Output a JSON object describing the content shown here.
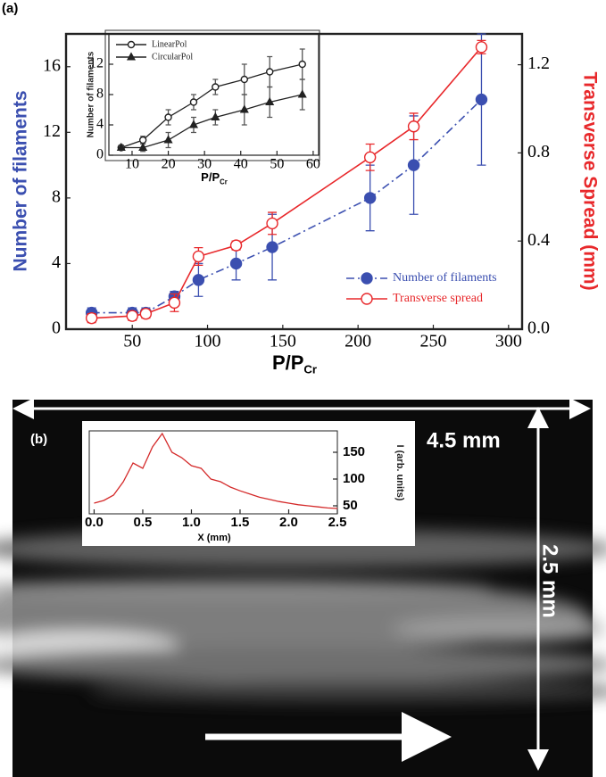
{
  "figure": {
    "panel_labels": [
      "(a)",
      "(b)"
    ],
    "scale_labels": [
      "4.5 mm",
      "2.5 mm"
    ]
  },
  "chart_data": [
    {
      "type": "line",
      "xlabel": "P/P",
      "xlabel_sub": "Cr",
      "ylabel": "Number of filaments",
      "y2label": "Transverse Spread (mm)",
      "x": [
        23,
        50,
        59,
        78,
        94,
        119,
        143,
        208,
        237,
        282
      ],
      "xlim": [
        6,
        309
      ],
      "xticks": [
        50,
        100,
        150,
        200,
        250,
        300
      ],
      "ylim": [
        0,
        18
      ],
      "yticks": [
        0,
        4,
        8,
        12,
        16
      ],
      "y2lim": [
        0,
        1.34
      ],
      "y2ticks": [
        {
          "value": 0,
          "label": "0.0"
        },
        0.4,
        0.8,
        1.2
      ],
      "legend": "lower right",
      "series": [
        {
          "name": "Number of filaments",
          "color": "#3b4fb0",
          "linestyle": "dashdot",
          "marker": "filled-circle",
          "values": [
            1,
            1,
            1,
            2,
            3,
            4,
            5,
            8,
            10,
            14
          ],
          "errors": [
            0.3,
            0.3,
            0.3,
            0.3,
            1,
            1,
            2,
            2,
            3,
            4
          ]
        },
        {
          "name": "Transverse spread",
          "color": "#e8282b",
          "linestyle": "solid",
          "marker": "open-circle",
          "axis": "y2",
          "values": [
            0.05,
            0.06,
            0.07,
            0.12,
            0.33,
            0.38,
            0.48,
            0.78,
            0.92,
            1.28
          ],
          "errors": [
            0.02,
            0.02,
            0.02,
            0.04,
            0.04,
            0.02,
            0.05,
            0.06,
            0.06,
            0.03
          ]
        }
      ]
    },
    {
      "type": "line",
      "xlabel": "P/P",
      "xlabel_sub": "Cr",
      "ylabel": "Number of filaments",
      "x": [
        7,
        13,
        20,
        27,
        33,
        41,
        48,
        57
      ],
      "xlim": [
        3.6,
        61.5
      ],
      "xticks": [
        10,
        20,
        30,
        40,
        50,
        60
      ],
      "ylim": [
        0,
        16
      ],
      "yticks": [
        0,
        4,
        8,
        12
      ],
      "legend": "upper left",
      "series": [
        {
          "name": "LinearPol",
          "color": "#222222",
          "linestyle": "solid",
          "marker": "open-circle",
          "values": [
            1,
            2,
            5,
            7,
            9,
            10,
            11,
            12
          ],
          "errors": [
            0.3,
            0.5,
            1,
            1,
            1,
            2,
            2,
            2
          ]
        },
        {
          "name": "CircularPol",
          "color": "#222222",
          "linestyle": "solid",
          "marker": "filled-triangle",
          "values": [
            1,
            1,
            2,
            4,
            5,
            6,
            7,
            8
          ],
          "errors": [
            0.3,
            0.5,
            1,
            1,
            1,
            2,
            2,
            2
          ]
        }
      ]
    },
    {
      "type": "line",
      "xlabel": "X (mm)",
      "ylabel": "I (arb. units)",
      "x": [
        0,
        0.1,
        0.2,
        0.3,
        0.4,
        0.5,
        0.6,
        0.7,
        0.8,
        0.9,
        1,
        1.1,
        1.2,
        1.3,
        1.4,
        1.5,
        1.6,
        1.7,
        1.8,
        1.9,
        2,
        2.1,
        2.2,
        2.3,
        2.4,
        2.5
      ],
      "xlim": [
        -0.05,
        2.5
      ],
      "xticks": [
        {
          "value": 0,
          "label": "0.0"
        },
        0.5,
        {
          "value": 1,
          "label": "1.0"
        },
        1.5,
        {
          "value": 2,
          "label": "2.0"
        },
        2.5
      ],
      "ylim": [
        35,
        190
      ],
      "yticks": [
        50,
        100,
        150
      ],
      "series": [
        {
          "color": "#d42a2a",
          "linestyle": "solid",
          "marker": "none",
          "values": [
            55,
            60,
            70,
            95,
            130,
            120,
            160,
            185,
            150,
            140,
            125,
            120,
            100,
            95,
            85,
            78,
            72,
            66,
            62,
            58,
            55,
            52,
            50,
            48,
            46,
            45
          ]
        }
      ]
    }
  ]
}
